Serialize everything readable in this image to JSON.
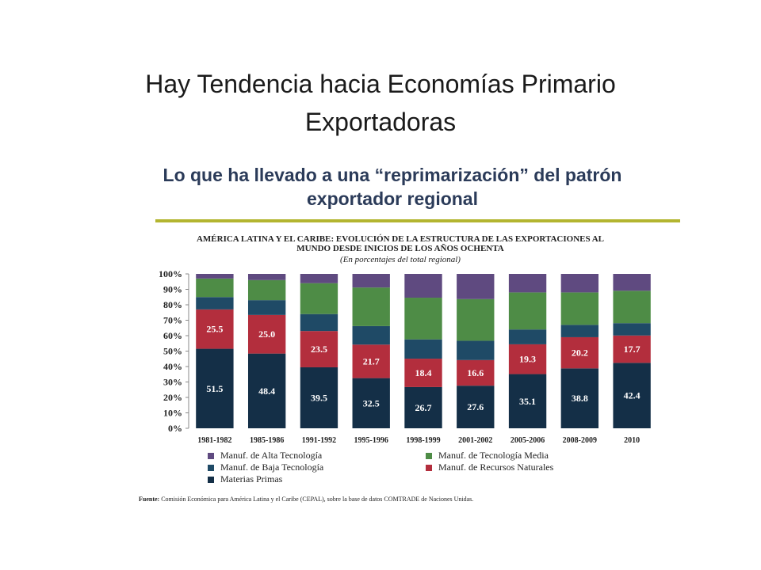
{
  "slide": {
    "title_line1": "Hay Tendencia hacia Economías Primario",
    "title_line2": "Exportadoras",
    "subtitle_line1": "Lo que ha llevado a una “reprimarización” del patrón",
    "subtitle_line2": "exportador regional",
    "rule_color": "#b3b530"
  },
  "source": {
    "label": "Fuente:",
    "text": "Comisión Económica para América Latina y el Caribe (CEPAL), sobre la base de datos COMTRADE de Naciones Unidas."
  },
  "chart_data": {
    "type": "bar",
    "stacked": true,
    "title_line1": "AMÉRICA LATINA Y EL CARIBE: EVOLUCIÓN DE LA ESTRUCTURA DE LAS EXPORTACIONES AL",
    "title_line2": "MUNDO DESDE INICIOS DE LOS AÑOS OCHENTA",
    "subtitle": "(En porcentajes del total regional)",
    "categories": [
      "1981-1982",
      "1985-1986",
      "1991-1992",
      "1995-1996",
      "1998-1999",
      "2001-2002",
      "2005-2006",
      "2008-2009",
      "2010"
    ],
    "ylim": [
      0,
      100
    ],
    "yticks": [
      "0%",
      "10%",
      "20%",
      "30%",
      "40%",
      "50%",
      "60%",
      "70%",
      "80%",
      "90%",
      "100%"
    ],
    "grid": false,
    "legend_position": "bottom",
    "series": [
      {
        "name": "Materias Primas",
        "color": "#142f47",
        "values": [
          51.5,
          48.4,
          39.5,
          32.5,
          26.7,
          27.6,
          35.1,
          38.8,
          42.4
        ],
        "labels": [
          "51.5",
          "48.4",
          "39.5",
          "32.5",
          "26.7",
          "27.6",
          "35.1",
          "38.8",
          "42.4"
        ]
      },
      {
        "name": "Manuf. de Recursos Naturales",
        "color": "#b32e3d",
        "values": [
          25.5,
          25.0,
          23.5,
          21.7,
          18.4,
          16.6,
          19.3,
          20.2,
          17.7
        ],
        "labels": [
          "25.5",
          "25.0",
          "23.5",
          "21.7",
          "18.4",
          "16.6",
          "19.3",
          "20.2",
          "17.7"
        ]
      },
      {
        "name": "Manuf. de Baja Tecnología",
        "color": "#1f4a66",
        "values": [
          8,
          9.6,
          11,
          12,
          12.5,
          12.5,
          9.6,
          8,
          8
        ]
      },
      {
        "name": "Manuf. de Tecnología Media",
        "color": "#4e8c46",
        "values": [
          12,
          13,
          20,
          25,
          27,
          27,
          24,
          21,
          21
        ]
      },
      {
        "name": "Manuf. de Alta Tecnología",
        "color": "#5f4a80",
        "values": [
          3,
          4,
          6,
          8.8,
          15.4,
          16.3,
          12,
          12,
          10.9
        ]
      }
    ],
    "legend": [
      {
        "series": "Manuf. de Alta Tecnología",
        "color": "#5f4a80"
      },
      {
        "series": "Manuf. de Tecnología Media",
        "color": "#4e8c46"
      },
      {
        "series": "Manuf. de Baja Tecnología",
        "color": "#1f4a66"
      },
      {
        "series": "Manuf. de Recursos Naturales",
        "color": "#b32e3d"
      },
      {
        "series": "Materias Primas",
        "color": "#142f47"
      }
    ]
  }
}
